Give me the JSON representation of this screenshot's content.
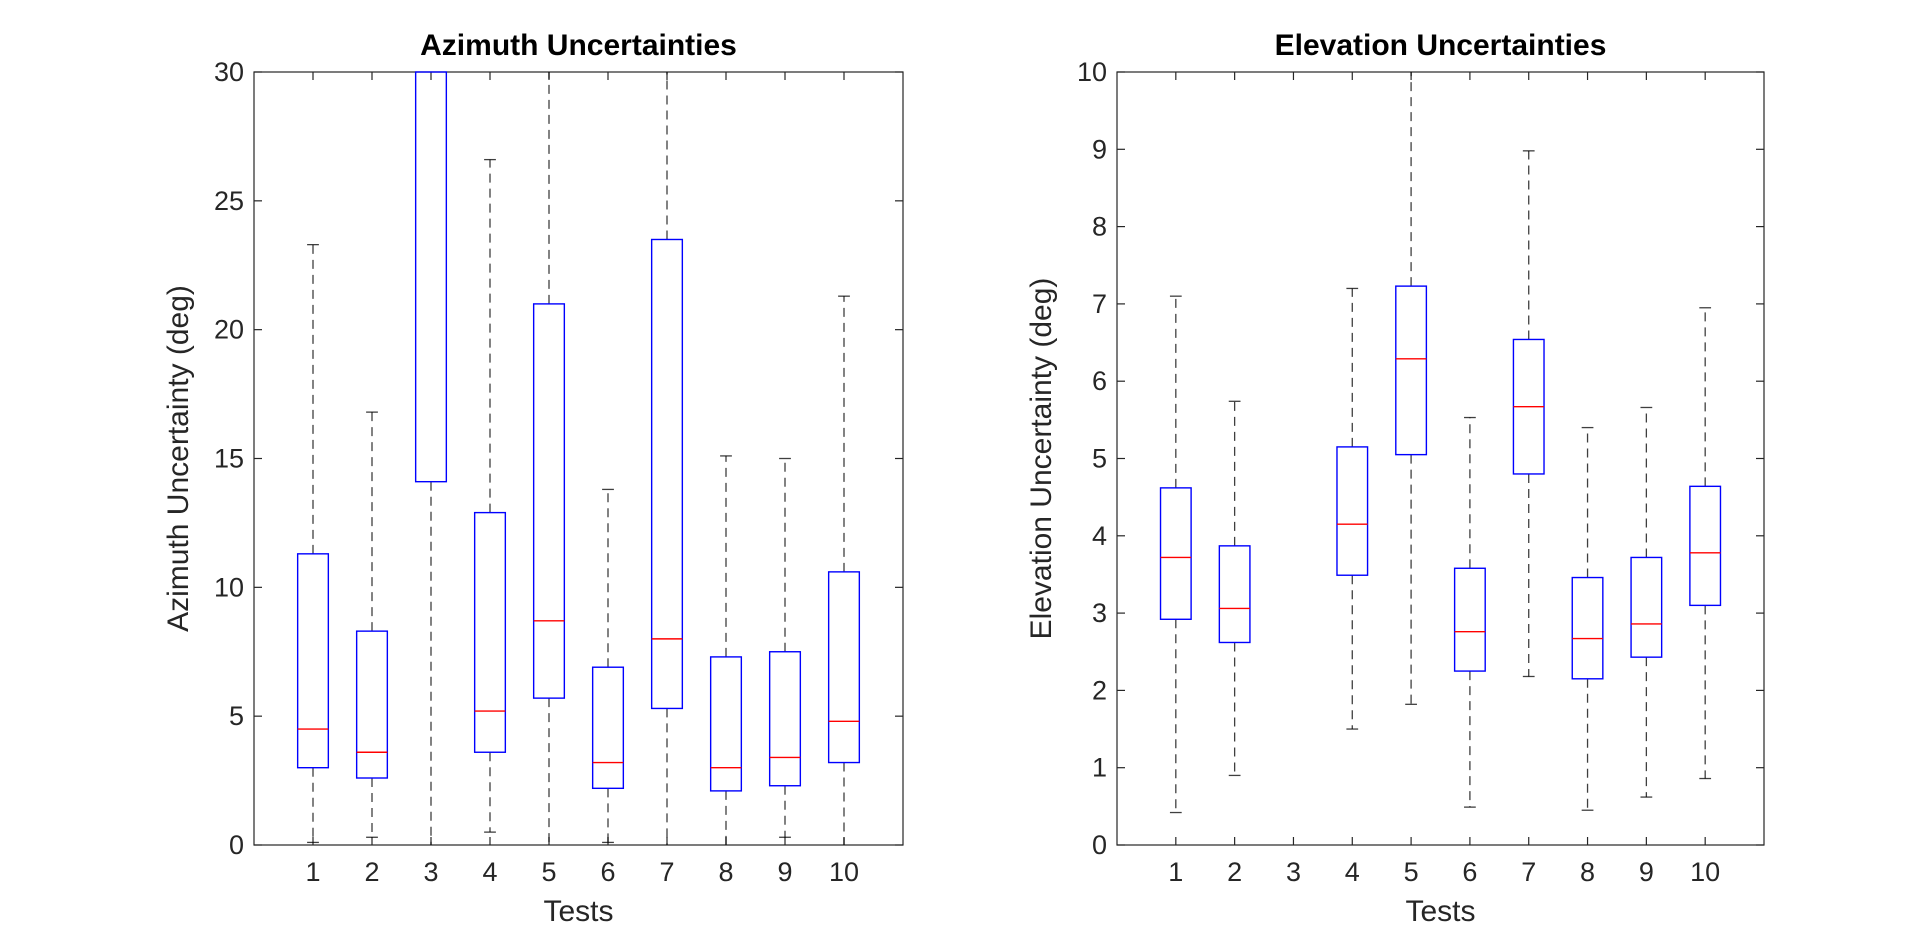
{
  "colors": {
    "box": "#0000FF",
    "median": "#FF0000",
    "whisker": "#000000",
    "axis": "#262626",
    "background": "#FFFFFF"
  },
  "chart_data": [
    {
      "type": "boxplot",
      "title": "Azimuth Uncertainties",
      "xlabel": "Tests",
      "ylabel": "Azimuth Uncertainty (deg)",
      "ylim": [
        0,
        30
      ],
      "yticks": [
        "0",
        "5",
        "10",
        "15",
        "20",
        "25",
        "30"
      ],
      "categories": [
        "1",
        "2",
        "3",
        "4",
        "5",
        "6",
        "7",
        "8",
        "9",
        "10"
      ],
      "grid": false,
      "boxes": [
        {
          "test": "1",
          "min": 0.1,
          "q1": 3.0,
          "median": 4.5,
          "q3": 11.3,
          "max": 23.3
        },
        {
          "test": "2",
          "min": 0.3,
          "q1": 2.6,
          "median": 3.6,
          "q3": 8.3,
          "max": 16.8
        },
        {
          "test": "3",
          "min": 0.0,
          "q1": 14.1,
          "median": null,
          "q3": 30.0,
          "max": 30.0
        },
        {
          "test": "4",
          "min": 0.5,
          "q1": 3.6,
          "median": 5.2,
          "q3": 12.9,
          "max": 26.6
        },
        {
          "test": "5",
          "min": 0.0,
          "q1": 5.7,
          "median": 8.7,
          "q3": 21.0,
          "max": 30.0
        },
        {
          "test": "6",
          "min": 0.1,
          "q1": 2.2,
          "median": 3.2,
          "q3": 6.9,
          "max": 13.8
        },
        {
          "test": "7",
          "min": 0.0,
          "q1": 5.3,
          "median": 8.0,
          "q3": 23.5,
          "max": 30.0
        },
        {
          "test": "8",
          "min": 0.0,
          "q1": 2.1,
          "median": 3.0,
          "q3": 7.3,
          "max": 15.1
        },
        {
          "test": "9",
          "min": 0.3,
          "q1": 2.3,
          "median": 3.4,
          "q3": 7.5,
          "max": 15.0
        },
        {
          "test": "10",
          "min": 0.0,
          "q1": 3.2,
          "median": 4.8,
          "q3": 10.6,
          "max": 21.3
        }
      ]
    },
    {
      "type": "boxplot",
      "title": "Elevation Uncertainties",
      "xlabel": "Tests",
      "ylabel": "Elevation Uncertainty (deg)",
      "ylim": [
        0,
        10
      ],
      "yticks": [
        "0",
        "1",
        "2",
        "3",
        "4",
        "5",
        "6",
        "7",
        "8",
        "9",
        "10"
      ],
      "categories": [
        "1",
        "2",
        "3",
        "4",
        "5",
        "6",
        "7",
        "8",
        "9",
        "10"
      ],
      "grid": false,
      "boxes": [
        {
          "test": "1",
          "min": 0.42,
          "q1": 2.92,
          "median": 3.72,
          "q3": 4.62,
          "max": 7.1
        },
        {
          "test": "2",
          "min": 0.9,
          "q1": 2.62,
          "median": 3.06,
          "q3": 3.87,
          "max": 5.74
        },
        {
          "test": "3",
          "min": null,
          "q1": null,
          "median": null,
          "q3": null,
          "max": null
        },
        {
          "test": "4",
          "min": 1.5,
          "q1": 3.49,
          "median": 4.15,
          "q3": 5.15,
          "max": 7.2
        },
        {
          "test": "5",
          "min": 1.82,
          "q1": 5.05,
          "median": 6.29,
          "q3": 7.23,
          "max": 10.0
        },
        {
          "test": "6",
          "min": 0.49,
          "q1": 2.25,
          "median": 2.76,
          "q3": 3.58,
          "max": 5.53
        },
        {
          "test": "7",
          "min": 2.18,
          "q1": 4.8,
          "median": 5.67,
          "q3": 6.54,
          "max": 8.98
        },
        {
          "test": "8",
          "min": 0.45,
          "q1": 2.15,
          "median": 2.67,
          "q3": 3.46,
          "max": 5.4
        },
        {
          "test": "9",
          "min": 0.62,
          "q1": 2.43,
          "median": 2.86,
          "q3": 3.72,
          "max": 5.66
        },
        {
          "test": "10",
          "min": 0.86,
          "q1": 3.1,
          "median": 3.78,
          "q3": 4.64,
          "max": 6.95
        }
      ]
    }
  ]
}
